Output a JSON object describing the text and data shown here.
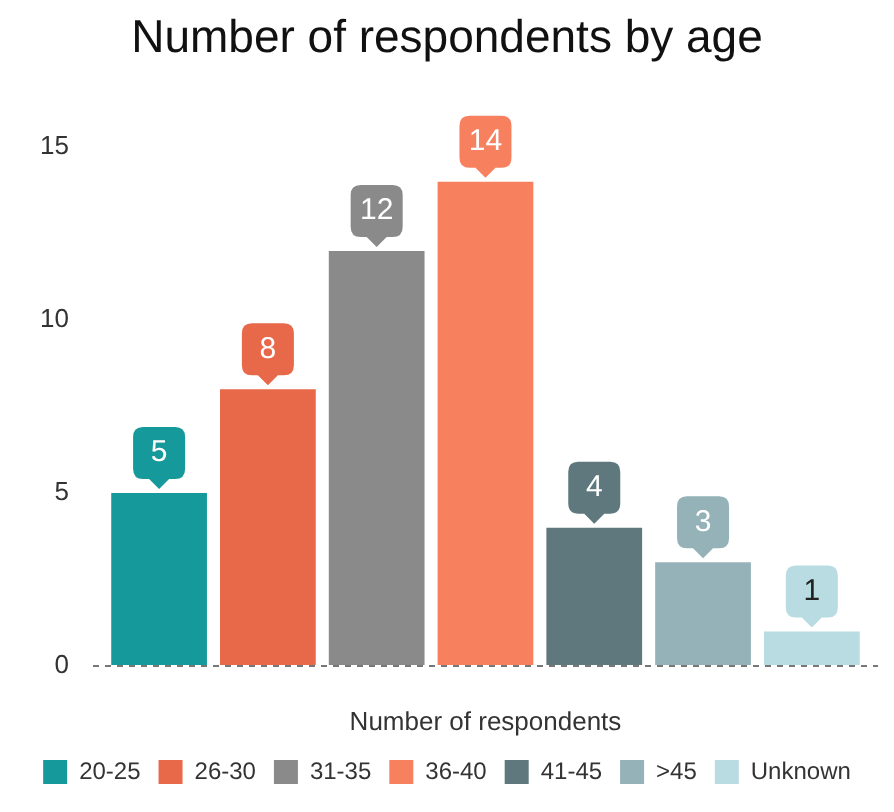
{
  "chart_data": {
    "type": "bar",
    "title": "Number of respondents by age",
    "xlabel": "Number of respondents",
    "categories": [
      null
    ],
    "series": [
      {
        "name": "20-25",
        "color": "#16999b",
        "values": [
          5
        ]
      },
      {
        "name": "26-30",
        "color": "#e8684a",
        "values": [
          8
        ]
      },
      {
        "name": "31-35",
        "color": "#8a8a8a",
        "values": [
          12
        ]
      },
      {
        "name": "36-40",
        "color": "#f7815f",
        "values": [
          14
        ]
      },
      {
        "name": "41-45",
        "color": "#5e787d",
        "values": [
          4
        ]
      },
      {
        "name": ">45",
        "color": "#94b2b7",
        "values": [
          3
        ]
      },
      {
        "name": "Unknown",
        "color": "#b9dce2",
        "values": [
          1
        ]
      }
    ],
    "ylim": [
      0,
      15
    ],
    "yticks": [
      0,
      5,
      10,
      15
    ],
    "grid": false,
    "legend": "bottom",
    "data_labels": true
  }
}
